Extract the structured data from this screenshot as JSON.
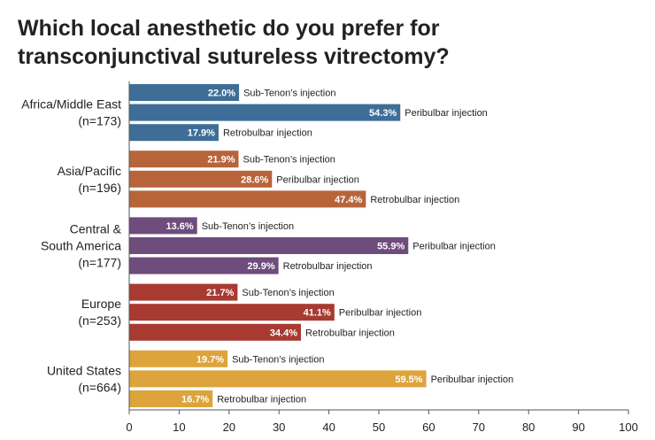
{
  "chart_data": {
    "type": "bar",
    "orientation": "horizontal",
    "title_lines": [
      "Which local anesthetic do you prefer for",
      "transconjunctival sutureless vitrectomy?"
    ],
    "xlabel": "",
    "ylabel": "",
    "xlim": [
      0,
      100
    ],
    "xticks": [
      0,
      10,
      20,
      30,
      40,
      50,
      60,
      70,
      80,
      90,
      100
    ],
    "grid": false,
    "value_suffix": "%",
    "groups": [
      {
        "label_lines": [
          "Africa/Middle East",
          "(n=173)"
        ],
        "color": "#3e6e98",
        "bars": [
          {
            "series": "Sub-Tenon’s injection",
            "value": 22.0,
            "value_label": "22.0%"
          },
          {
            "series": "Peribulbar injection",
            "value": 54.3,
            "value_label": "54.3%"
          },
          {
            "series": "Retrobulbar injection",
            "value": 17.9,
            "value_label": "17.9%"
          }
        ]
      },
      {
        "label_lines": [
          "Asia/Pacific",
          "(n=196)"
        ],
        "color": "#b8643a",
        "bars": [
          {
            "series": "Sub-Tenon’s injection",
            "value": 21.9,
            "value_label": "21.9%"
          },
          {
            "series": "Peribulbar injection",
            "value": 28.6,
            "value_label": "28.6%"
          },
          {
            "series": "Retrobulbar injection",
            "value": 47.4,
            "value_label": "47.4%"
          }
        ]
      },
      {
        "label_lines": [
          "Central &",
          "South America",
          "(n=177)"
        ],
        "color": "#6e4c7c",
        "bars": [
          {
            "series": "Sub-Tenon’s injection",
            "value": 13.6,
            "value_label": "13.6%"
          },
          {
            "series": "Peribulbar injection",
            "value": 55.9,
            "value_label": "55.9%"
          },
          {
            "series": "Retrobulbar injection",
            "value": 29.9,
            "value_label": "29.9%"
          }
        ]
      },
      {
        "label_lines": [
          "Europe",
          "(n=253)"
        ],
        "color": "#a83a32",
        "bars": [
          {
            "series": "Sub-Tenon’s injection",
            "value": 21.7,
            "value_label": "21.7%"
          },
          {
            "series": "Peribulbar injection",
            "value": 41.1,
            "value_label": "41.1%"
          },
          {
            "series": "Retrobulbar injection",
            "value": 34.4,
            "value_label": "34.4%"
          }
        ]
      },
      {
        "label_lines": [
          "United States",
          "(n=664)"
        ],
        "color": "#dca43a",
        "bars": [
          {
            "series": "Sub-Tenon’s injection",
            "value": 19.7,
            "value_label": "19.7%"
          },
          {
            "series": "Peribulbar injection",
            "value": 59.5,
            "value_label": "59.5%"
          },
          {
            "series": "Retrobulbar injection",
            "value": 16.7,
            "value_label": "16.7%"
          }
        ]
      }
    ]
  }
}
